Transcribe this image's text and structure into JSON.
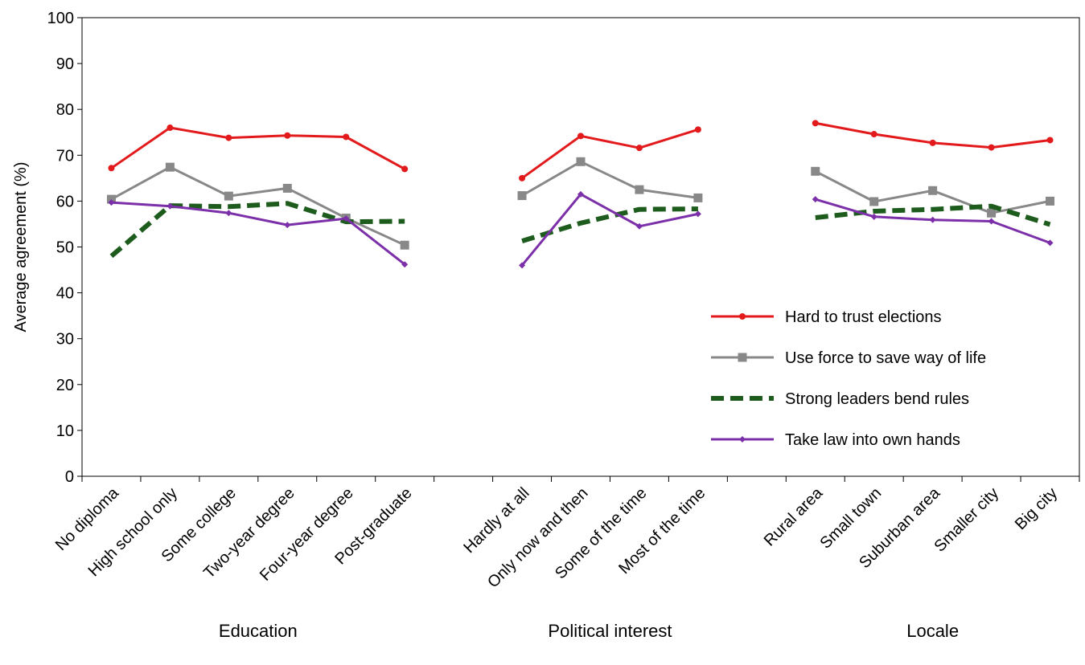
{
  "chart_data": {
    "type": "line",
    "ylabel": "Average agreement (%)",
    "ylim": [
      0,
      100
    ],
    "yticks": [
      0,
      10,
      20,
      30,
      40,
      50,
      60,
      70,
      80,
      90,
      100
    ],
    "grid": false,
    "legend_position": "bottom-right (inside plot)",
    "groups": [
      {
        "label": "Education",
        "categories": [
          "No diploma",
          "High school only",
          "Some college",
          "Two-year degree",
          "Four-year degree",
          "Post-graduate"
        ]
      },
      {
        "label": "Political interest",
        "categories": [
          "Hardly at all",
          "Only now and then",
          "Some of the time",
          "Most of the time"
        ]
      },
      {
        "label": "Locale",
        "categories": [
          "Rural area",
          "Small town",
          "Suburban area",
          "Smaller city",
          "Big city"
        ]
      }
    ],
    "series": [
      {
        "name": "Hard to trust elections",
        "color": "#e31a1c",
        "marker": "circle",
        "dash": "solid",
        "groups": [
          [
            67.2,
            76.0,
            73.8,
            74.3,
            74.0,
            67.0
          ],
          [
            65.0,
            74.2,
            71.6,
            75.6
          ],
          [
            77.0,
            74.6,
            72.7,
            71.7,
            73.3
          ]
        ]
      },
      {
        "name": "Use force to save way of life",
        "color": "#888888",
        "marker": "square",
        "dash": "solid",
        "groups": [
          [
            60.4,
            67.4,
            61.1,
            62.8,
            56.3,
            50.4
          ],
          [
            61.2,
            68.6,
            62.5,
            60.7
          ],
          [
            66.5,
            59.9,
            62.3,
            57.4,
            60.0
          ]
        ]
      },
      {
        "name": "Strong leaders bend rules",
        "color": "#1e5c1e",
        "marker": "none",
        "dash": "dashed",
        "groups": [
          [
            48.0,
            59.0,
            58.8,
            59.5,
            55.5,
            55.6
          ],
          [
            51.3,
            55.2,
            58.2,
            58.3
          ],
          [
            56.4,
            57.8,
            58.2,
            58.9,
            54.9
          ]
        ]
      },
      {
        "name": "Take law into own hands",
        "color": "#7b2fa8",
        "marker": "diamond",
        "dash": "solid",
        "groups": [
          [
            59.7,
            58.9,
            57.4,
            54.8,
            56.2,
            46.2
          ],
          [
            46.0,
            61.5,
            54.5,
            57.2
          ],
          [
            60.4,
            56.6,
            55.9,
            55.6,
            50.9
          ]
        ]
      }
    ]
  }
}
